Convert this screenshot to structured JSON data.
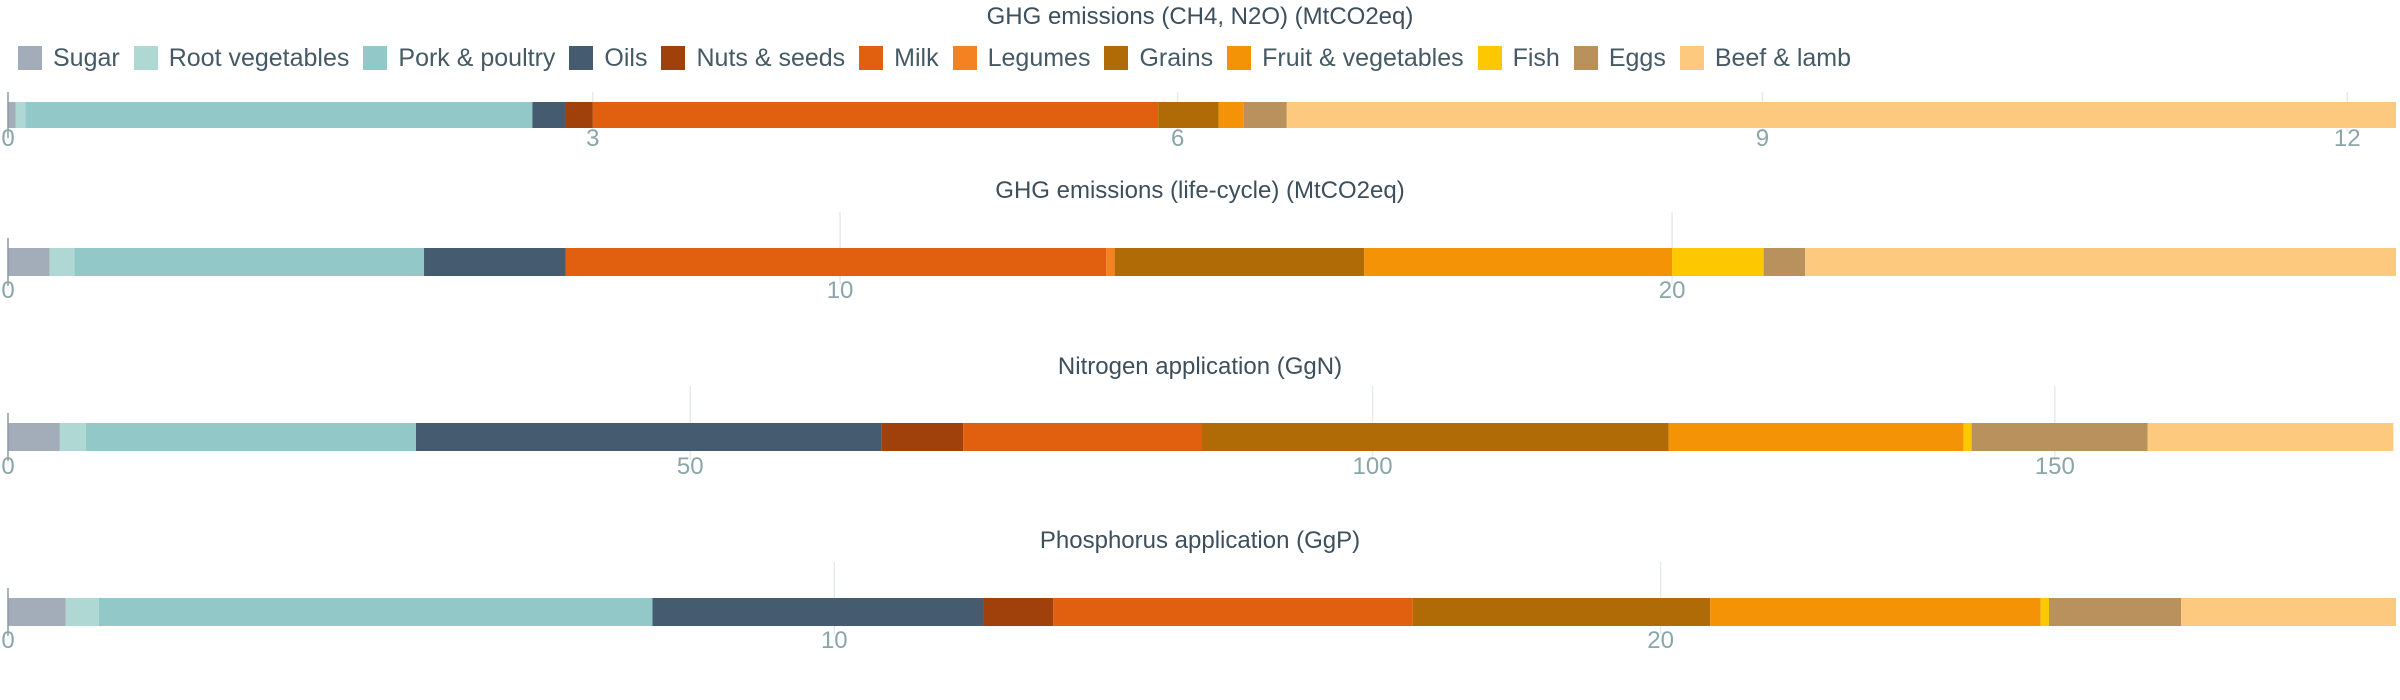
{
  "legend": [
    {
      "name": "Sugar",
      "color": "#a2adb9"
    },
    {
      "name": "Root vegetables",
      "color": "#afd8d5"
    },
    {
      "name": "Pork & poultry",
      "color": "#92c9c8"
    },
    {
      "name": "Oils",
      "color": "#445b70"
    },
    {
      "name": "Nuts & seeds",
      "color": "#a0410c"
    },
    {
      "name": "Milk",
      "color": "#e06010"
    },
    {
      "name": "Legumes",
      "color": "#f48220"
    },
    {
      "name": "Grains",
      "color": "#b06a06"
    },
    {
      "name": "Fruit & vegetables",
      "color": "#f39305"
    },
    {
      "name": "Fish",
      "color": "#fdc800"
    },
    {
      "name": "Eggs",
      "color": "#b8915c"
    },
    {
      "name": "Beef & lamb",
      "color": "#fdc97f"
    }
  ],
  "chart_data": [
    {
      "type": "bar",
      "orientation": "horizontal-stacked",
      "title": "GHG emissions (CH4, N2O) (MtCO2eq)",
      "xlim": [
        0,
        12.25
      ],
      "xticks": [
        0,
        3,
        6,
        9,
        12
      ],
      "series": [
        {
          "name": "Sugar",
          "value": 0.04
        },
        {
          "name": "Root vegetables",
          "value": 0.05
        },
        {
          "name": "Pork & poultry",
          "value": 2.6
        },
        {
          "name": "Oils",
          "value": 0.17
        },
        {
          "name": "Nuts & seeds",
          "value": 0.14
        },
        {
          "name": "Milk",
          "value": 2.9
        },
        {
          "name": "Legumes",
          "value": 0.0
        },
        {
          "name": "Grains",
          "value": 0.31
        },
        {
          "name": "Fruit & vegetables",
          "value": 0.13
        },
        {
          "name": "Fish",
          "value": 0.0
        },
        {
          "name": "Eggs",
          "value": 0.22
        },
        {
          "name": "Beef & lamb",
          "value": 5.69
        }
      ]
    },
    {
      "type": "bar",
      "orientation": "horizontal-stacked",
      "title": "GHG emissions (life-cycle) (MtCO2eq)",
      "xlim": [
        0,
        28.7
      ],
      "xticks": [
        0,
        10,
        20
      ],
      "series": [
        {
          "name": "Sugar",
          "value": 0.5
        },
        {
          "name": "Root vegetables",
          "value": 0.3
        },
        {
          "name": "Pork & poultry",
          "value": 4.2
        },
        {
          "name": "Oils",
          "value": 1.7
        },
        {
          "name": "Nuts & seeds",
          "value": 0.0
        },
        {
          "name": "Milk",
          "value": 6.5
        },
        {
          "name": "Legumes",
          "value": 0.1
        },
        {
          "name": "Grains",
          "value": 3.0
        },
        {
          "name": "Fruit & vegetables",
          "value": 3.7
        },
        {
          "name": "Fish",
          "value": 1.1
        },
        {
          "name": "Eggs",
          "value": 0.5
        },
        {
          "name": "Beef & lamb",
          "value": 7.1
        }
      ]
    },
    {
      "type": "bar",
      "orientation": "horizontal-stacked",
      "title": "Nitrogen application (GgN)",
      "xlim": [
        0,
        175
      ],
      "xticks": [
        0,
        50,
        100,
        150
      ],
      "series": [
        {
          "name": "Sugar",
          "value": 3.8
        },
        {
          "name": "Root vegetables",
          "value": 1.9
        },
        {
          "name": "Pork & poultry",
          "value": 24.2
        },
        {
          "name": "Oils",
          "value": 34.1
        },
        {
          "name": "Nuts & seeds",
          "value": 6.0
        },
        {
          "name": "Milk",
          "value": 17.5
        },
        {
          "name": "Legumes",
          "value": 0.0
        },
        {
          "name": "Grains",
          "value": 34.2
        },
        {
          "name": "Fruit & vegetables",
          "value": 21.6
        },
        {
          "name": "Fish",
          "value": 0.6
        },
        {
          "name": "Eggs",
          "value": 12.9
        },
        {
          "name": "Beef & lamb",
          "value": 18.0
        }
      ]
    },
    {
      "type": "bar",
      "orientation": "horizontal-stacked",
      "title": "Phosphorus application (GgP)",
      "xlim": [
        0,
        28.9
      ],
      "xticks": [
        0,
        10,
        20
      ],
      "series": [
        {
          "name": "Sugar",
          "value": 0.7
        },
        {
          "name": "Root vegetables",
          "value": 0.4
        },
        {
          "name": "Pork & poultry",
          "value": 6.7
        },
        {
          "name": "Oils",
          "value": 4.0
        },
        {
          "name": "Nuts & seeds",
          "value": 0.85
        },
        {
          "name": "Milk",
          "value": 4.35
        },
        {
          "name": "Legumes",
          "value": 0.0
        },
        {
          "name": "Grains",
          "value": 3.6
        },
        {
          "name": "Fruit & vegetables",
          "value": 4.0
        },
        {
          "name": "Fish",
          "value": 0.1
        },
        {
          "name": "Eggs",
          "value": 1.6
        },
        {
          "name": "Beef & lamb",
          "value": 2.6
        }
      ]
    }
  ]
}
